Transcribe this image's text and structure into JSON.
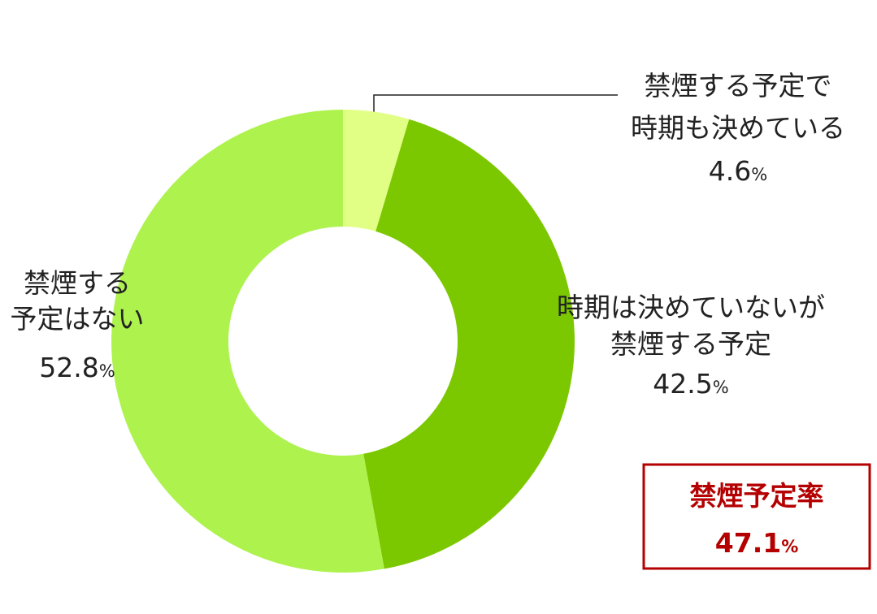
{
  "chart_data": {
    "type": "donut",
    "categories": [
      [
        "禁煙する予定で",
        "時期も決めている"
      ],
      [
        "時期は決めていないが",
        "禁煙する予定"
      ],
      [
        "禁煙する",
        "予定はない"
      ]
    ],
    "values": [
      4.6,
      42.5,
      52.8
    ],
    "colors": [
      "#e2ff85",
      "#7cc800",
      "#aef24e"
    ],
    "unit": "%",
    "annotation": {
      "title": "禁煙予定率",
      "value": 47.1
    }
  }
}
